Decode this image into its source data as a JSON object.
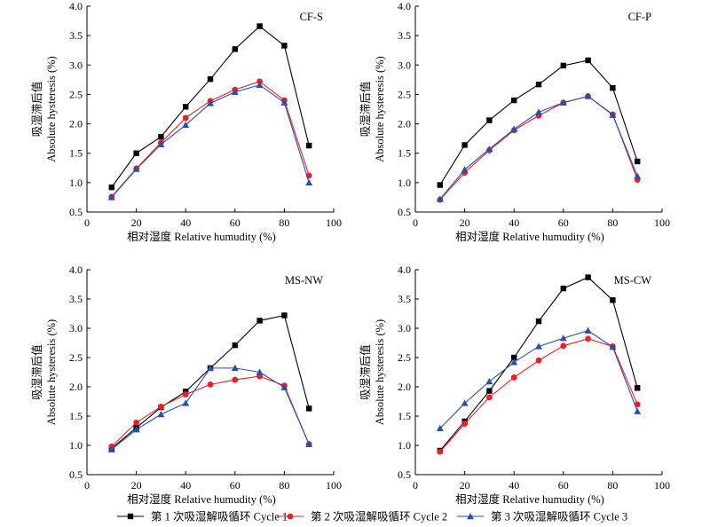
{
  "colors": {
    "cycle1": "#000000",
    "cycle2": "#e8202a",
    "cycle3": "#2b4ea8"
  },
  "legend": [
    {
      "label": "第 1 次吸湿解吸循环 Cycle 1",
      "color": "#000000",
      "marker": "square"
    },
    {
      "label": "第 2 次吸湿解吸循环 Cycle 2",
      "color": "#e8202a",
      "marker": "circle"
    },
    {
      "label": "第 3 次吸湿解吸循环 Cycle 3",
      "color": "#2b4ea8",
      "marker": "triangle"
    }
  ],
  "chart_data": [
    {
      "type": "line",
      "title": "CF-S",
      "xlabel": "相对湿度 Relative humudity (%)",
      "ylabel_cn": "吸湿滞后值",
      "ylabel_en": "Absolute hysteresis (%)",
      "xlim": [
        0,
        100
      ],
      "ylim": [
        0.5,
        4.0
      ],
      "xticks": [
        "0",
        "20",
        "40",
        "60",
        "80",
        "100"
      ],
      "yticks": [
        "0.5",
        "1.0",
        "1.5",
        "2.0",
        "2.5",
        "3.0",
        "3.5",
        "4.0"
      ],
      "x": [
        10,
        20,
        30,
        40,
        50,
        60,
        70,
        80,
        90
      ],
      "series": [
        {
          "name": "第 1 次吸湿解吸循环 Cycle 1",
          "values": [
            0.92,
            1.5,
            1.78,
            2.29,
            2.76,
            3.27,
            3.66,
            3.33,
            1.63
          ]
        },
        {
          "name": "第 2 次吸湿解吸循环 Cycle 2",
          "values": [
            0.76,
            1.24,
            1.68,
            2.1,
            2.39,
            2.58,
            2.72,
            2.4,
            1.12
          ]
        },
        {
          "name": "第 3 次吸湿解吸循环 Cycle 3",
          "values": [
            0.75,
            1.23,
            1.65,
            1.98,
            2.35,
            2.54,
            2.66,
            2.36,
            1.0
          ]
        }
      ]
    },
    {
      "type": "line",
      "title": "CF-P",
      "xlabel": "相对湿度 Relative humudity (%)",
      "ylabel_cn": "吸湿滞后值",
      "ylabel_en": "Absolute hysteresis (%)",
      "xlim": [
        0,
        100
      ],
      "ylim": [
        0.5,
        4.0
      ],
      "xticks": [
        "0",
        "20",
        "40",
        "60",
        "80",
        "100"
      ],
      "yticks": [
        "0.5",
        "1.0",
        "1.5",
        "2.0",
        "2.5",
        "3.0",
        "3.5",
        "4.0"
      ],
      "x": [
        10,
        20,
        30,
        40,
        50,
        60,
        70,
        80,
        90
      ],
      "series": [
        {
          "name": "第 1 次吸湿解吸循环 Cycle 1",
          "values": [
            0.96,
            1.64,
            2.06,
            2.4,
            2.67,
            2.99,
            3.08,
            2.61,
            1.36
          ]
        },
        {
          "name": "第 2 次吸湿解吸循环 Cycle 2",
          "values": [
            0.71,
            1.17,
            1.55,
            1.89,
            2.14,
            2.36,
            2.47,
            2.16,
            1.05
          ]
        },
        {
          "name": "第 3 次吸湿解吸循环 Cycle 3",
          "values": [
            0.72,
            1.22,
            1.57,
            1.91,
            2.2,
            2.36,
            2.47,
            2.15,
            1.11
          ]
        }
      ]
    },
    {
      "type": "line",
      "title": "MS-NW",
      "xlabel": "相对湿度 Relative humudity (%)",
      "ylabel_cn": "吸湿滞后值",
      "ylabel_en": "Absolute hysteresis (%)",
      "xlim": [
        0,
        100
      ],
      "ylim": [
        0.5,
        4.0
      ],
      "xticks": [
        "0",
        "20",
        "40",
        "60",
        "80",
        "100"
      ],
      "yticks": [
        "0.5",
        "1.0",
        "1.5",
        "2.0",
        "2.5",
        "3.0",
        "3.5",
        "4.0"
      ],
      "x": [
        10,
        20,
        30,
        40,
        50,
        60,
        70,
        80,
        90
      ],
      "series": [
        {
          "name": "第 1 次吸湿解吸循环 Cycle 1",
          "values": [
            0.95,
            1.3,
            1.65,
            1.92,
            2.32,
            2.71,
            3.13,
            3.22,
            1.63
          ]
        },
        {
          "name": "第 2 次吸湿解吸循环 Cycle 2",
          "values": [
            0.98,
            1.39,
            1.66,
            1.87,
            2.04,
            2.12,
            2.18,
            2.02,
            1.02
          ]
        },
        {
          "name": "第 3 次吸湿解吸循环 Cycle 3",
          "values": [
            0.93,
            1.27,
            1.53,
            1.72,
            2.32,
            2.32,
            2.25,
            1.99,
            1.02
          ]
        }
      ]
    },
    {
      "type": "line",
      "title": "MS-CW",
      "xlabel": "相对湿度 Relative humudity (%)",
      "ylabel_cn": "吸湿滞后值",
      "ylabel_en": "Absolute hysteresis (%)",
      "xlim": [
        0,
        100
      ],
      "ylim": [
        0.5,
        4.0
      ],
      "xticks": [
        "0",
        "20",
        "40",
        "60",
        "80",
        "100"
      ],
      "yticks": [
        "0.5",
        "1.0",
        "1.5",
        "2.0",
        "2.5",
        "3.0",
        "3.5",
        "4.0"
      ],
      "x": [
        10,
        20,
        30,
        40,
        50,
        60,
        70,
        80,
        90
      ],
      "series": [
        {
          "name": "第 1 次吸湿解吸循环 Cycle 1",
          "values": [
            0.91,
            1.41,
            1.93,
            2.5,
            3.12,
            3.68,
            3.87,
            3.48,
            1.98
          ]
        },
        {
          "name": "第 2 次吸湿解吸循环 Cycle 2",
          "values": [
            0.89,
            1.37,
            1.82,
            2.16,
            2.45,
            2.7,
            2.82,
            2.69,
            1.7
          ]
        },
        {
          "name": "第 3 次吸湿解吸循环 Cycle 3",
          "values": [
            1.29,
            1.72,
            2.09,
            2.42,
            2.69,
            2.83,
            2.96,
            2.68,
            1.58
          ]
        }
      ]
    }
  ]
}
